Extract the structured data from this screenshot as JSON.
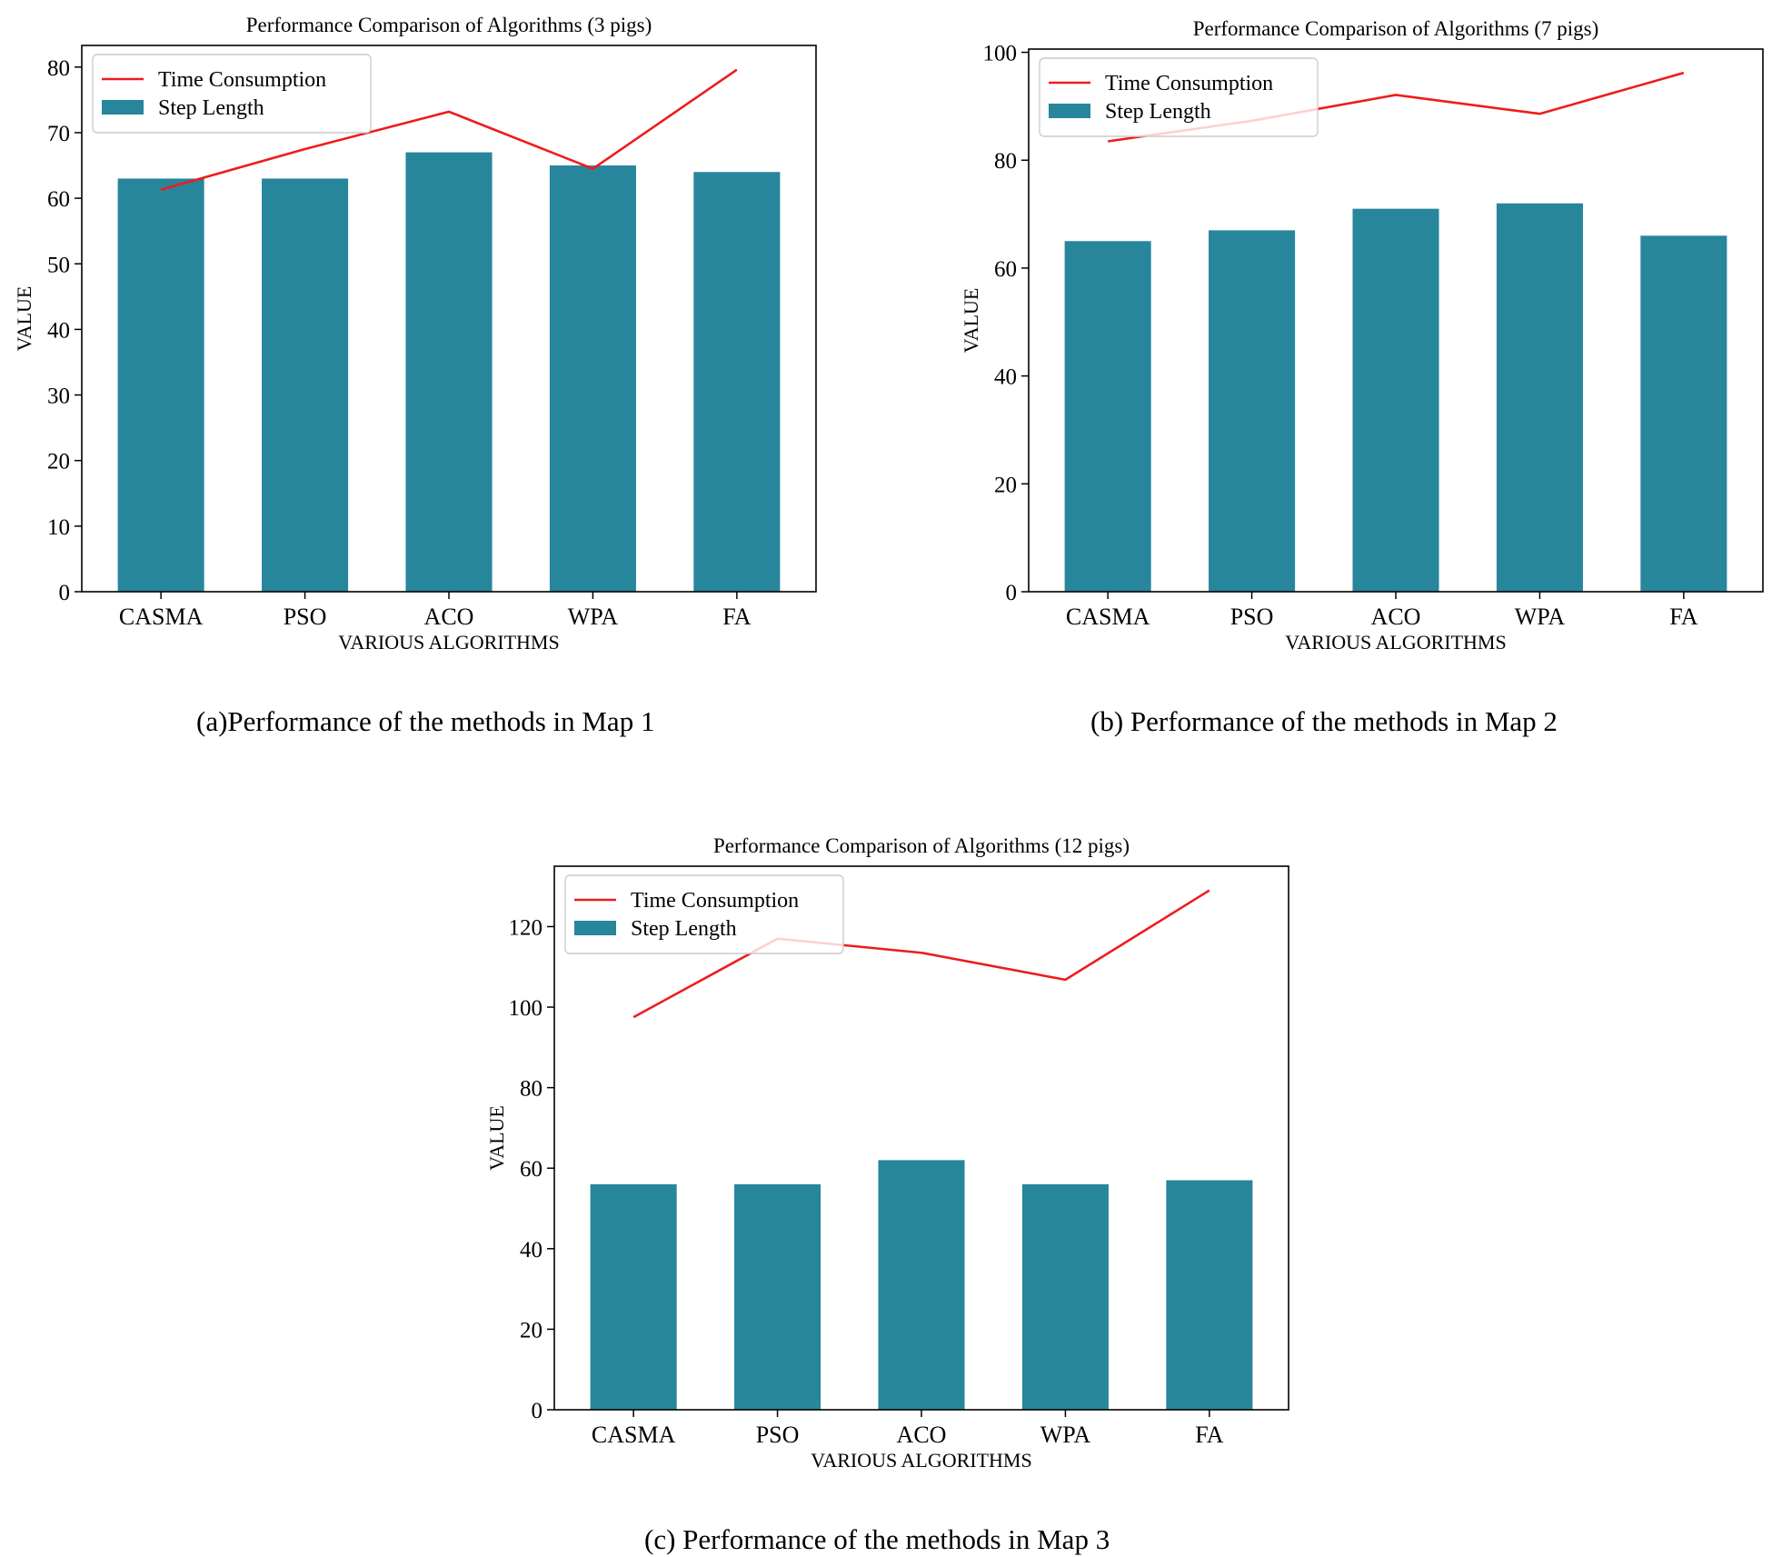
{
  "colors": {
    "bar": "#27869C",
    "line": "#EE1C1C",
    "axis": "#000000"
  },
  "legend": {
    "line_label": "Time Consumption",
    "bar_label": "Step Length"
  },
  "captions": [
    "(a)Performance of the methods in Map 1",
    "(b) Performance of the methods in Map 2",
    "(c) Performance of the methods in Map 3"
  ],
  "chart_data": [
    {
      "type": "bar",
      "title": "Performance Comparison of Algorithms (3 pigs)",
      "xlabel": "VARIOUS ALGORITHMS",
      "ylabel": "VALUE",
      "categories": [
        "CASMA",
        "PSO",
        "ACO",
        "WPA",
        "FA"
      ],
      "ylim": [
        0,
        83.3
      ],
      "yticks": [
        0,
        10,
        20,
        30,
        40,
        50,
        60,
        70,
        80
      ],
      "legend_position": "top-left",
      "series": [
        {
          "name": "Step Length",
          "type": "bar",
          "values": [
            63,
            63,
            67,
            65,
            64
          ]
        },
        {
          "name": "Time Consumption",
          "type": "line",
          "values": [
            61.3,
            67.5,
            73.2,
            64.5,
            79.6
          ]
        }
      ]
    },
    {
      "type": "bar",
      "title": "Performance Comparison of Algorithms (7 pigs)",
      "xlabel": "VARIOUS ALGORITHMS",
      "ylabel": "VALUE",
      "categories": [
        "CASMA",
        "PSO",
        "ACO",
        "WPA",
        "FA"
      ],
      "ylim": [
        0,
        100.6
      ],
      "yticks": [
        0,
        20,
        40,
        60,
        80,
        100
      ],
      "legend_position": "top-left",
      "series": [
        {
          "name": "Step Length",
          "type": "bar",
          "values": [
            65,
            67,
            71,
            72,
            66
          ]
        },
        {
          "name": "Time Consumption",
          "type": "line",
          "values": [
            83.5,
            87.3,
            92.1,
            88.6,
            96.2
          ]
        }
      ]
    },
    {
      "type": "bar",
      "title": "Performance Comparison of Algorithms (12 pigs)",
      "xlabel": "VARIOUS ALGORITHMS",
      "ylabel": "VALUE",
      "categories": [
        "CASMA",
        "PSO",
        "ACO",
        "WPA",
        "FA"
      ],
      "ylim": [
        0,
        135
      ],
      "yticks": [
        0,
        20,
        40,
        60,
        80,
        100,
        120
      ],
      "legend_position": "top-left",
      "series": [
        {
          "name": "Step Length",
          "type": "bar",
          "values": [
            56,
            56,
            62,
            56,
            57
          ]
        },
        {
          "name": "Time Consumption",
          "type": "line",
          "values": [
            97.5,
            117,
            113.5,
            106.8,
            129
          ]
        }
      ]
    }
  ]
}
